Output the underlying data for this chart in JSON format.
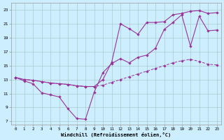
{
  "xlabel": "Windchill (Refroidissement éolien,°C)",
  "bg_color": "#cceeff",
  "grid_color": "#aacccc",
  "line_color": "#993399",
  "xlim": [
    -0.5,
    23.5
  ],
  "ylim": [
    6.5,
    24.0
  ],
  "yticks": [
    7,
    9,
    11,
    13,
    15,
    17,
    19,
    21,
    23
  ],
  "xticks": [
    0,
    1,
    2,
    3,
    4,
    5,
    6,
    7,
    8,
    9,
    10,
    11,
    12,
    13,
    14,
    15,
    16,
    17,
    18,
    19,
    20,
    21,
    22,
    23
  ],
  "line1_x": [
    0,
    1,
    2,
    3,
    4,
    5,
    6,
    7,
    8,
    9,
    10,
    11,
    12,
    13,
    14,
    15,
    16,
    17,
    18,
    19,
    20,
    21,
    22,
    23
  ],
  "line1_y": [
    13.3,
    12.8,
    12.4,
    11.1,
    10.8,
    10.5,
    8.8,
    7.4,
    7.3,
    11.2,
    14.0,
    15.3,
    16.0,
    15.4,
    16.2,
    16.5,
    17.5,
    20.2,
    21.2,
    22.3,
    17.8,
    22.1,
    20.0,
    20.1
  ],
  "line2_x": [
    0,
    1,
    2,
    3,
    4,
    5,
    6,
    7,
    8,
    9,
    10,
    11,
    12,
    13,
    14,
    15,
    16,
    17,
    18,
    19,
    20,
    21,
    22,
    23
  ],
  "line2_y": [
    13.3,
    13.0,
    12.9,
    12.7,
    12.5,
    12.4,
    12.3,
    12.1,
    12.0,
    12.0,
    12.2,
    12.6,
    13.0,
    13.4,
    13.8,
    14.2,
    14.6,
    15.0,
    15.4,
    15.7,
    15.9,
    15.6,
    15.2,
    15.1
  ],
  "line3_x": [
    0,
    1,
    2,
    3,
    4,
    5,
    6,
    7,
    8,
    9,
    10,
    11,
    12,
    13,
    14,
    15,
    16,
    17,
    18,
    19,
    20,
    21,
    22,
    23
  ],
  "line3_y": [
    13.3,
    13.0,
    12.9,
    12.7,
    12.5,
    12.4,
    12.3,
    12.1,
    12.0,
    12.0,
    13.0,
    15.5,
    21.0,
    20.3,
    19.5,
    21.2,
    21.2,
    21.3,
    22.3,
    22.5,
    22.8,
    22.9,
    22.5,
    22.6
  ]
}
